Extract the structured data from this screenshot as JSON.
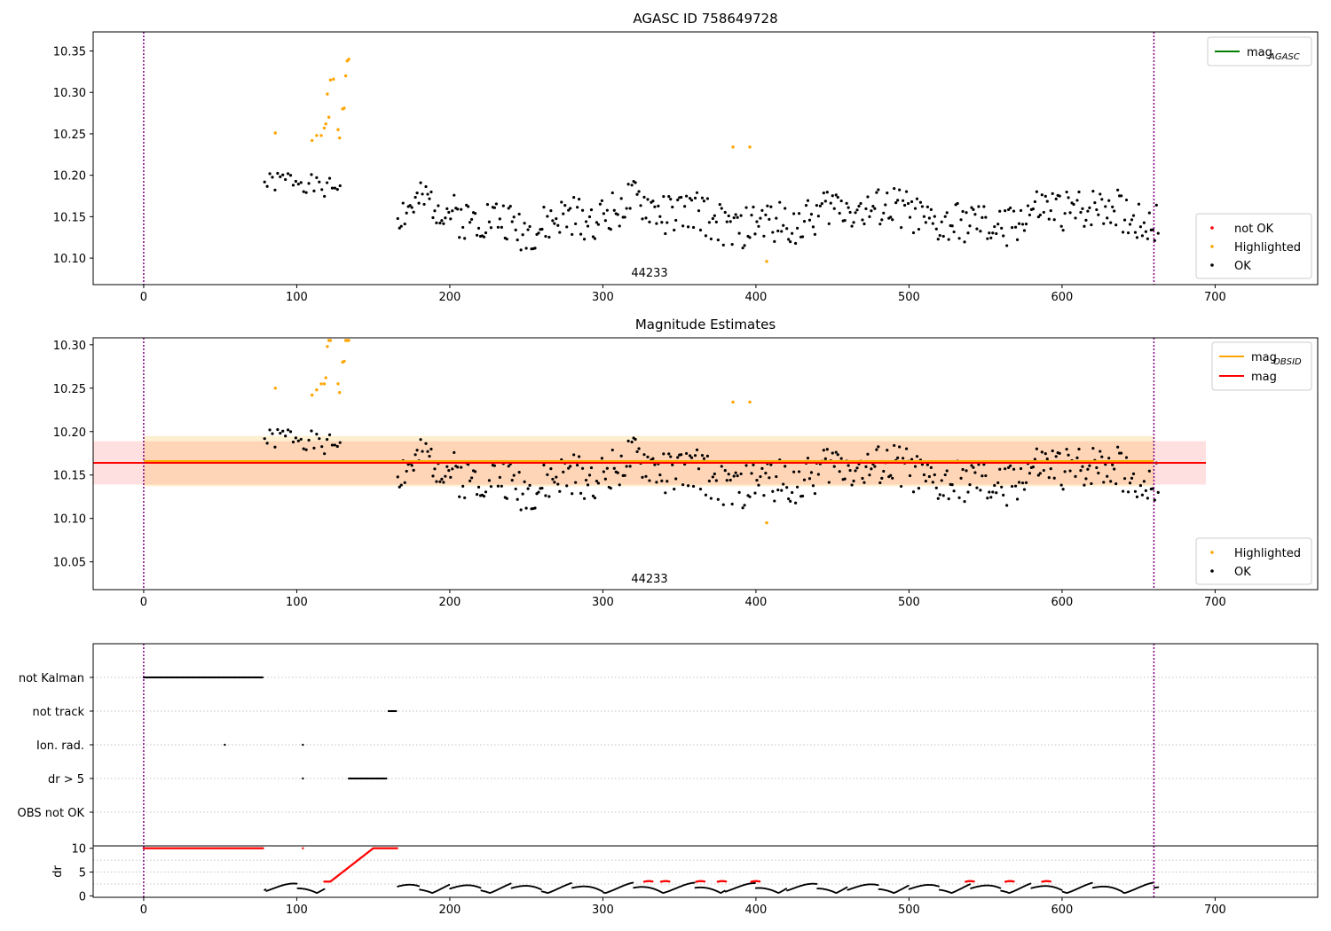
{
  "chart_data": [
    {
      "type": "scatter",
      "title": "AGASC ID 758649728",
      "xlim": [
        -33,
        767
      ],
      "ylim": [
        10.068,
        10.373
      ],
      "xticks": [
        0,
        100,
        200,
        300,
        400,
        500,
        600,
        700
      ],
      "yticks": [
        10.1,
        10.15,
        10.2,
        10.25,
        10.3,
        10.35
      ],
      "ytick_labels": [
        "10.10",
        "10.15",
        "10.20",
        "10.25",
        "10.30",
        "10.35"
      ],
      "vlines": [
        0,
        660
      ],
      "obsid_label": {
        "text": "44233",
        "x": 330
      },
      "legend_lines": [
        {
          "label": "mag",
          "sub": "AGASC",
          "color": "#008000"
        }
      ],
      "legend_points": [
        {
          "label": "not OK",
          "color": "#ff0000"
        },
        {
          "label": "Highlighted",
          "color": "#ffa500"
        },
        {
          "label": "OK",
          "color": "#000000"
        }
      ],
      "highlighted_points": [
        [
          86,
          10.251
        ],
        [
          110,
          10.242
        ],
        [
          113,
          10.248
        ],
        [
          116,
          10.248
        ],
        [
          118,
          10.257
        ],
        [
          119,
          10.262
        ],
        [
          120,
          10.298
        ],
        [
          121,
          10.27
        ],
        [
          122,
          10.315
        ],
        [
          124,
          10.316
        ],
        [
          127,
          10.255
        ],
        [
          128,
          10.245
        ],
        [
          130,
          10.28
        ],
        [
          131,
          10.281
        ],
        [
          132,
          10.32
        ],
        [
          133,
          10.338
        ],
        [
          134,
          10.34
        ],
        [
          385,
          10.234
        ],
        [
          396,
          10.234
        ],
        [
          407,
          10.096
        ]
      ],
      "ok_segments": [
        {
          "x0": 79,
          "x1": 130,
          "step": 1.7,
          "base": 10.2,
          "trend": 0.0,
          "amp": 0.025,
          "seed": 1
        },
        {
          "x0": 166,
          "x1": 663,
          "step": 1.15,
          "base": 10.15,
          "trend": 0.0,
          "amp": 0.05,
          "seed": 2
        }
      ],
      "legend_position": "top-right / lower-right"
    },
    {
      "type": "scatter",
      "title": "Magnitude Estimates",
      "xlim": [
        -33,
        767
      ],
      "ylim": [
        10.018,
        10.308
      ],
      "xticks": [
        0,
        100,
        200,
        300,
        400,
        500,
        600,
        700
      ],
      "yticks": [
        10.05,
        10.1,
        10.15,
        10.2,
        10.25,
        10.3
      ],
      "ytick_labels": [
        "10.05",
        "10.10",
        "10.15",
        "10.20",
        "10.25",
        "10.30"
      ],
      "vlines": [
        0,
        660
      ],
      "obsid_label": {
        "text": "44233",
        "x": 330
      },
      "mag_line": {
        "value": 10.164,
        "band": [
          10.139,
          10.189
        ],
        "x_range": [
          -33,
          694
        ],
        "color": "#ff0000"
      },
      "mag_obsid_line": {
        "value": 10.166,
        "band": [
          10.137,
          10.195
        ],
        "x_range": [
          0,
          660
        ],
        "color": "#ffa500"
      },
      "legend_lines": [
        {
          "label": "mag",
          "sub": "OBSID",
          "color": "#ffa500"
        },
        {
          "label": "mag",
          "sub": "",
          "color": "#ff0000"
        }
      ],
      "legend_points": [
        {
          "label": "Highlighted",
          "color": "#ffa500"
        },
        {
          "label": "OK",
          "color": "#000000"
        }
      ],
      "highlighted_points": [
        [
          86,
          10.25
        ],
        [
          110,
          10.242
        ],
        [
          113,
          10.248
        ],
        [
          116,
          10.255
        ],
        [
          118,
          10.255
        ],
        [
          119,
          10.262
        ],
        [
          120,
          10.298
        ],
        [
          121,
          10.305
        ],
        [
          122,
          10.305
        ],
        [
          127,
          10.255
        ],
        [
          128,
          10.245
        ],
        [
          130,
          10.28
        ],
        [
          131,
          10.281
        ],
        [
          132,
          10.305
        ],
        [
          133,
          10.305
        ],
        [
          134,
          10.305
        ],
        [
          385,
          10.234
        ],
        [
          396,
          10.234
        ],
        [
          407,
          10.095
        ]
      ],
      "ok_segments": [
        {
          "x0": 79,
          "x1": 130,
          "step": 1.7,
          "base": 10.2,
          "trend": 0.0,
          "amp": 0.025,
          "seed": 1
        },
        {
          "x0": 166,
          "x1": 663,
          "step": 1.15,
          "base": 10.15,
          "trend": 0.0,
          "amp": 0.05,
          "seed": 2
        }
      ]
    },
    {
      "type": "scatter",
      "title": "",
      "xlim": [
        -33,
        767
      ],
      "categories": [
        "not Kalman",
        "not track",
        "Ion. rad.",
        "dr > 5",
        "OBS not OK"
      ],
      "flag_runs": [
        {
          "row": "not Kalman",
          "ranges": [
            [
              0,
              78
            ]
          ],
          "singles": []
        },
        {
          "row": "not track",
          "ranges": [
            [
              160,
              165
            ]
          ],
          "singles": []
        },
        {
          "row": "Ion. rad.",
          "ranges": [],
          "singles": [
            53,
            104
          ]
        },
        {
          "row": "dr > 5",
          "ranges": [
            [
              134,
              159
            ]
          ],
          "singles": [
            104
          ]
        },
        {
          "row": "OBS not OK",
          "ranges": [],
          "singles": []
        }
      ],
      "vlines": [
        0,
        660
      ]
    },
    {
      "type": "scatter",
      "title": "",
      "ylabel": "dr",
      "xlim": [
        -33,
        767
      ],
      "ylim": [
        -0.3,
        10.5
      ],
      "xticks": [
        0,
        100,
        200,
        300,
        400,
        500,
        600,
        700
      ],
      "yticks": [
        0,
        5,
        10
      ],
      "ytick_labels": [
        "0",
        "5",
        "10"
      ],
      "red_ranges": [
        [
          0,
          78,
          10
        ],
        [
          104,
          104,
          10
        ],
        [
          118,
          122,
          3
        ],
        [
          150,
          166,
          10
        ]
      ],
      "ramp": {
        "x0": 122,
        "x1": 150,
        "y0": 3,
        "y1": 10
      },
      "red_bumps": [
        330,
        341,
        364,
        378,
        400,
        540,
        566,
        590
      ],
      "black_segments": [
        [
          79,
          118
        ],
        [
          166,
          663
        ]
      ],
      "vlines": [
        0,
        660
      ]
    }
  ]
}
